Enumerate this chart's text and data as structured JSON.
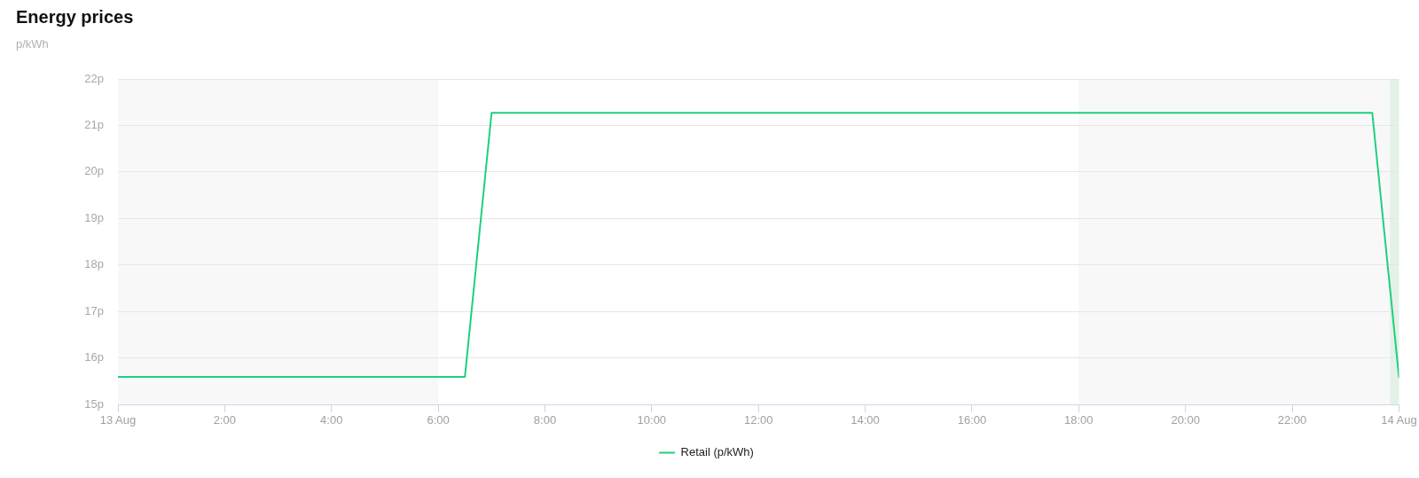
{
  "chart_data": {
    "type": "line",
    "title": "Energy prices",
    "ylabel": "p/kWh",
    "x": [
      0,
      6.5,
      7,
      23.5,
      24
    ],
    "series": [
      {
        "name": "Retail (p/kWh)",
        "color": "#1ed07f",
        "values": [
          15.59,
          15.59,
          21.27,
          21.27,
          15.59
        ]
      }
    ],
    "xlim": [
      0,
      24
    ],
    "xticks": [
      {
        "value": 0,
        "label": "13 Aug"
      },
      {
        "value": 2,
        "label": "2:00"
      },
      {
        "value": 4,
        "label": "4:00"
      },
      {
        "value": 6,
        "label": "6:00"
      },
      {
        "value": 8,
        "label": "8:00"
      },
      {
        "value": 10,
        "label": "10:00"
      },
      {
        "value": 12,
        "label": "12:00"
      },
      {
        "value": 14,
        "label": "14:00"
      },
      {
        "value": 16,
        "label": "16:00"
      },
      {
        "value": 18,
        "label": "18:00"
      },
      {
        "value": 20,
        "label": "20:00"
      },
      {
        "value": 22,
        "label": "22:00"
      },
      {
        "value": 24,
        "label": "14 Aug"
      }
    ],
    "ylim": [
      15,
      22
    ],
    "yticks": [
      {
        "value": 15,
        "label": "15p"
      },
      {
        "value": 16,
        "label": "16p"
      },
      {
        "value": 17,
        "label": "17p"
      },
      {
        "value": 18,
        "label": "18p"
      },
      {
        "value": 19,
        "label": "19p"
      },
      {
        "value": 20,
        "label": "20p"
      },
      {
        "value": 21,
        "label": "21p"
      },
      {
        "value": 22,
        "label": "22p"
      }
    ],
    "bands": [
      {
        "axis": "x",
        "from": 0,
        "to": 6,
        "color": "#f8f8f8"
      },
      {
        "axis": "x",
        "from": 18,
        "to": 24,
        "color": "#f8f8f8"
      },
      {
        "axis": "x",
        "from": 23.83,
        "to": 24,
        "color": "#e5f1e7"
      }
    ],
    "grid": "y",
    "legend": "bottom",
    "marker": "none",
    "line_style": "solid"
  }
}
